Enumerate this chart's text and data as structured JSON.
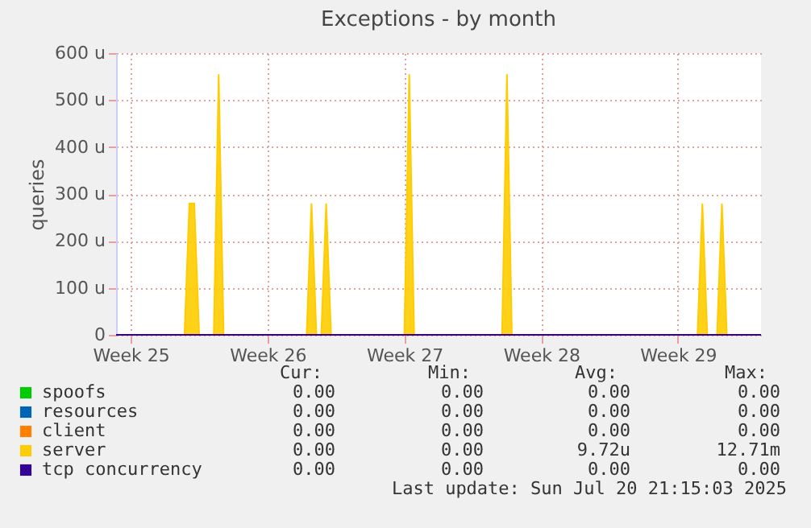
{
  "chart_data": {
    "type": "line",
    "title": "Exceptions - by month",
    "ylabel": "queries",
    "categories": [
      null,
      null,
      null,
      "Week 25",
      null,
      null,
      null,
      null,
      null,
      null,
      null,
      null,
      null,
      null,
      null,
      null,
      null,
      null,
      null,
      null,
      null,
      null,
      null,
      null,
      null,
      null,
      null,
      null,
      null,
      null,
      null,
      "Week 26",
      null,
      null,
      null,
      null,
      null,
      null,
      null,
      null,
      null,
      null,
      null,
      null,
      null,
      null,
      null,
      null,
      null,
      null,
      null,
      null,
      null,
      null,
      null,
      null,
      null,
      null,
      null,
      "Week 27",
      null,
      null,
      null,
      null,
      null,
      null,
      null,
      null,
      null,
      null,
      null,
      null,
      null,
      null,
      null,
      null,
      null,
      null,
      null,
      null,
      null,
      null,
      null,
      null,
      null,
      null,
      null,
      "Week 28",
      null,
      null,
      null,
      null,
      null,
      null,
      null,
      null,
      null,
      null,
      null,
      null,
      null,
      null,
      null,
      null,
      null,
      null,
      null,
      null,
      null,
      null,
      null,
      null,
      null,
      null,
      null,
      "Week 29",
      null,
      null,
      null,
      null,
      null,
      null,
      null,
      null,
      null,
      null,
      null,
      null,
      null,
      null,
      null,
      null,
      null
    ],
    "ylim": [
      0,
      600
    ],
    "yticks": [
      0,
      {
        "value": 100,
        "label": "100 u"
      },
      {
        "value": 200,
        "label": "200 u"
      },
      {
        "value": 300,
        "label": "300 u"
      },
      {
        "value": 400,
        "label": "400 u"
      },
      {
        "value": 500,
        "label": "500 u"
      },
      {
        "value": 600,
        "label": "600 u"
      }
    ],
    "grid": true,
    "legend": "bottom",
    "series": [
      {
        "name": "spoofs",
        "color": "#00cc00",
        "values": [
          null,
          null,
          null,
          null,
          null,
          null,
          null,
          null,
          null,
          null,
          null,
          null,
          null,
          null,
          null,
          null,
          null,
          null,
          null,
          null,
          null,
          null,
          null,
          null,
          null,
          null,
          null,
          null,
          null,
          null,
          null,
          null,
          null,
          null,
          null,
          null,
          null,
          null,
          null,
          null,
          null,
          null,
          null,
          null,
          null,
          null,
          null,
          null,
          null,
          null,
          null,
          null,
          null,
          null,
          null,
          null,
          null,
          null,
          null,
          null,
          null,
          null,
          null,
          null,
          null,
          null,
          null,
          null,
          null,
          null,
          null,
          null,
          null,
          null,
          null,
          null,
          null,
          null,
          null,
          null,
          null,
          null,
          null,
          null,
          null,
          null,
          null,
          null,
          null,
          null,
          null,
          null,
          null,
          null,
          null,
          null,
          null,
          null,
          null,
          null,
          null,
          null,
          null,
          null,
          null,
          null,
          null,
          null,
          null,
          null,
          null,
          null,
          null,
          null,
          null,
          null,
          null,
          null,
          null,
          null,
          null,
          null,
          null,
          null,
          null,
          null,
          null,
          null,
          null,
          null,
          null,
          null,
          null
        ]
      },
      {
        "name": "resources",
        "color": "#0066b3",
        "values": [
          null,
          null,
          null,
          null,
          null,
          null,
          null,
          null,
          null,
          null,
          null,
          null,
          null,
          null,
          null,
          null,
          null,
          null,
          null,
          null,
          null,
          null,
          null,
          null,
          null,
          null,
          null,
          null,
          null,
          null,
          null,
          null,
          null,
          null,
          null,
          null,
          null,
          null,
          null,
          null,
          null,
          null,
          null,
          null,
          null,
          null,
          null,
          null,
          null,
          null,
          null,
          null,
          null,
          null,
          null,
          null,
          null,
          null,
          null,
          null,
          null,
          null,
          null,
          null,
          null,
          null,
          null,
          null,
          null,
          null,
          null,
          null,
          null,
          null,
          null,
          null,
          null,
          null,
          null,
          null,
          null,
          null,
          null,
          null,
          null,
          null,
          null,
          null,
          null,
          null,
          null,
          null,
          null,
          null,
          null,
          null,
          null,
          null,
          null,
          null,
          null,
          null,
          null,
          null,
          null,
          null,
          null,
          null,
          null,
          null,
          null,
          null,
          null,
          null,
          null,
          null,
          null,
          null,
          null,
          null,
          null,
          null,
          null,
          null,
          null,
          null,
          null,
          null,
          null,
          null,
          null,
          null,
          null
        ]
      },
      {
        "name": "client",
        "color": "#ff8000",
        "values": [
          null,
          null,
          null,
          null,
          null,
          null,
          null,
          null,
          null,
          null,
          null,
          null,
          null,
          null,
          null,
          null,
          null,
          null,
          null,
          null,
          null,
          null,
          null,
          null,
          null,
          null,
          null,
          null,
          null,
          null,
          null,
          null,
          null,
          null,
          null,
          null,
          null,
          null,
          null,
          null,
          null,
          null,
          null,
          null,
          null,
          null,
          null,
          null,
          null,
          null,
          null,
          null,
          null,
          null,
          null,
          null,
          null,
          null,
          null,
          null,
          null,
          null,
          null,
          null,
          null,
          null,
          null,
          null,
          null,
          null,
          null,
          null,
          null,
          null,
          null,
          null,
          null,
          null,
          null,
          null,
          null,
          null,
          null,
          null,
          null,
          null,
          null,
          null,
          null,
          null,
          null,
          null,
          null,
          null,
          null,
          null,
          null,
          null,
          null,
          null,
          null,
          null,
          null,
          null,
          null,
          null,
          null,
          null,
          null,
          null,
          null,
          null,
          null,
          null,
          null,
          null,
          null,
          null,
          null,
          null,
          null,
          null,
          null,
          null,
          null,
          null,
          null,
          null,
          null,
          null,
          null,
          null,
          null
        ]
      },
      {
        "name": "server",
        "color": "#ffcc00",
        "type": "area",
        "values": [
          0,
          0,
          0,
          0,
          0,
          0,
          0,
          0,
          0,
          0,
          0,
          0,
          0,
          0,
          0,
          280,
          280,
          0,
          0,
          0,
          0,
          555,
          0,
          0,
          0,
          0,
          0,
          0,
          0,
          0,
          0,
          0,
          0,
          0,
          0,
          0,
          0,
          0,
          0,
          0,
          280,
          0,
          0,
          280,
          0,
          0,
          0,
          0,
          0,
          0,
          0,
          0,
          0,
          0,
          0,
          0,
          0,
          0,
          0,
          0,
          555,
          0,
          0,
          0,
          0,
          0,
          0,
          0,
          0,
          0,
          0,
          0,
          0,
          0,
          0,
          0,
          0,
          0,
          0,
          0,
          555,
          0,
          0,
          0,
          0,
          0,
          0,
          0,
          0,
          0,
          0,
          0,
          0,
          0,
          0,
          0,
          0,
          0,
          0,
          0,
          0,
          0,
          0,
          0,
          0,
          0,
          0,
          0,
          0,
          0,
          0,
          0,
          0,
          0,
          0,
          0,
          0,
          0,
          0,
          0,
          280,
          0,
          0,
          0,
          280,
          0,
          0,
          0,
          0,
          0,
          0,
          0,
          0
        ]
      },
      {
        "name": "tcp concurrency",
        "color": "#330099",
        "values": [
          0,
          0,
          0,
          0,
          0,
          0,
          0,
          0,
          0,
          0,
          0,
          0,
          0,
          0,
          0,
          0,
          0,
          0,
          0,
          0,
          0,
          0,
          0,
          0,
          0,
          0,
          0,
          0,
          0,
          0,
          0,
          0,
          0,
          0,
          0,
          0,
          0,
          0,
          0,
          0,
          0,
          0,
          0,
          0,
          0,
          0,
          0,
          0,
          0,
          0,
          0,
          0,
          0,
          0,
          0,
          0,
          0,
          0,
          0,
          0,
          0,
          0,
          0,
          0,
          0,
          0,
          0,
          0,
          0,
          0,
          0,
          0,
          0,
          0,
          0,
          0,
          0,
          0,
          0,
          0,
          0,
          0,
          0,
          0,
          0,
          0,
          0,
          0,
          0,
          0,
          0,
          0,
          0,
          0,
          0,
          0,
          0,
          0,
          0,
          0,
          0,
          0,
          0,
          0,
          0,
          0,
          0,
          0,
          0,
          0,
          0,
          0,
          0,
          0,
          0,
          0,
          0,
          0,
          0,
          0,
          0,
          0,
          0,
          0,
          0,
          0,
          0,
          0,
          0,
          0,
          0,
          0,
          0
        ]
      }
    ],
    "annotations": [
      "Cur:",
      "Min:",
      "Avg:",
      "Max:",
      "0.00",
      "0.00",
      "0.00",
      "0.00",
      "0.00",
      "0.00",
      "0.00",
      "0.00",
      "0.00",
      "0.00",
      "0.00",
      "0.00",
      "0.00",
      "0.00",
      "9.72u",
      "12.71m",
      "0.00",
      "0.00",
      "0.00",
      "0.00",
      "Last update: Sun Jul 20 21:15:03 2025"
    ]
  }
}
